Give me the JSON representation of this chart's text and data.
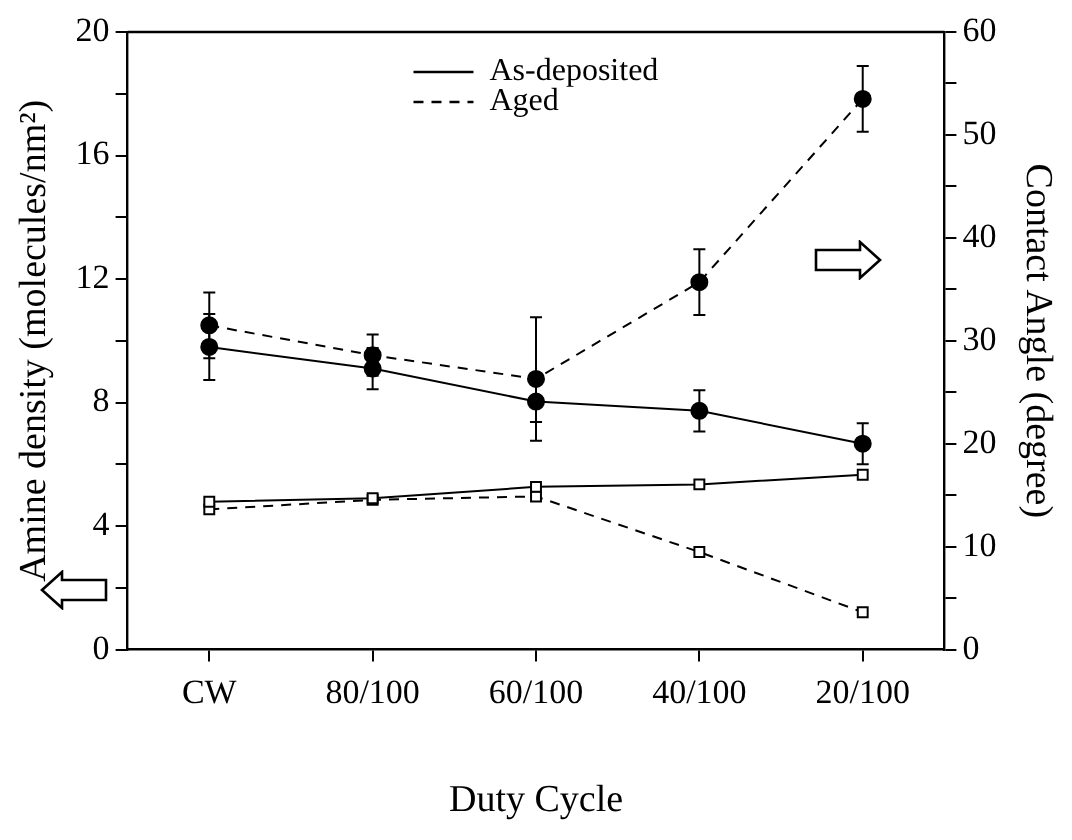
{
  "chart_data": {
    "type": "line",
    "xlabel": "Duty Cycle",
    "ylabel": "Amine density (molecules/nm²)",
    "y2label": "Contact Angle (degree)",
    "categories": [
      "CW",
      "80/100",
      "60/100",
      "40/100",
      "20/100"
    ],
    "series": [
      {
        "name": "As-deposited",
        "color": "#000000",
        "axis": "y2",
        "marker": "circle",
        "line_style": "solid",
        "values": [
          29.4,
          27.3,
          24.1,
          23.2,
          20.0
        ],
        "errors": [
          3.2,
          2,
          2,
          2,
          2
        ]
      },
      {
        "name": "Aged",
        "color": "#000000",
        "axis": "y2",
        "marker": "circle",
        "line_style": "dashed",
        "values": [
          31.5,
          28.6,
          26.3,
          35.7,
          53.5
        ],
        "errors": [
          3.2,
          2,
          6,
          3.2,
          3.2
        ]
      },
      {
        "color": "#000000",
        "marker": "square",
        "line_style": "solid",
        "values": [
          4.79,
          4.9,
          5.27,
          5.35,
          5.66
        ]
      },
      {
        "color": "#000000",
        "marker": "square",
        "line_style": "dashed",
        "values": [
          4.54,
          4.85,
          4.96,
          3.16,
          1.21
        ]
      }
    ],
    "ylim": [
      0,
      20
    ],
    "yticks": [
      0,
      {
        "value": 2,
        "label": null
      },
      4,
      {
        "value": 6,
        "label": null
      },
      8,
      {
        "value": 10,
        "label": null
      },
      12,
      {
        "value": 14,
        "label": null
      },
      16,
      {
        "value": 18,
        "label": null
      },
      20
    ],
    "y2lim": [
      0,
      60
    ],
    "y2ticks": [
      0,
      {
        "value": 5,
        "label": null
      },
      10,
      {
        "value": 15,
        "label": null
      },
      20,
      {
        "value": 25,
        "label": null
      },
      30,
      {
        "value": 35,
        "label": null
      },
      40,
      {
        "value": 45,
        "label": null
      },
      50,
      {
        "value": 55,
        "label": null
      },
      60
    ],
    "grid": false,
    "legend": "top"
  }
}
